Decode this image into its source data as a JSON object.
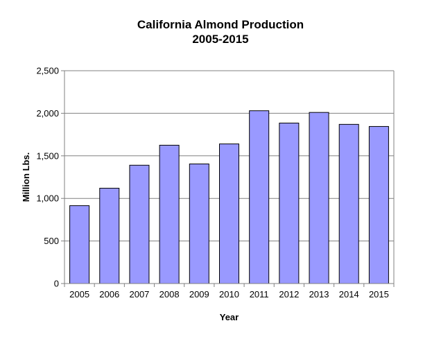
{
  "chart_data": {
    "type": "bar",
    "title": "California Almond Production",
    "subtitle": "2005-2015",
    "xlabel": "Year",
    "ylabel": "Million Lbs.",
    "categories": [
      "2005",
      "2006",
      "2007",
      "2008",
      "2009",
      "2010",
      "2011",
      "2012",
      "2013",
      "2014",
      "2015"
    ],
    "values": [
      915,
      1120,
      1390,
      1625,
      1405,
      1640,
      2030,
      1885,
      2010,
      1870,
      1845
    ],
    "ylim": [
      0,
      2500
    ],
    "yticks": [
      0,
      500,
      1000,
      1500,
      2000,
      2500
    ],
    "ytick_labels": [
      "0",
      "500",
      "1,000",
      "1,500",
      "2,000",
      "2,500"
    ],
    "grid": true,
    "bar_color": "#9999ff",
    "bar_edge_color": "#000000",
    "grid_color": "#808080"
  }
}
